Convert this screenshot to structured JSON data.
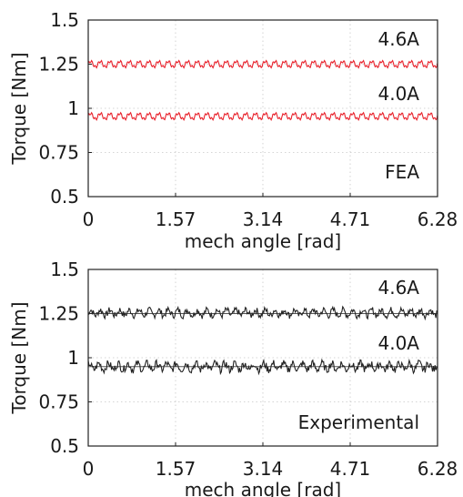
{
  "chart_data": [
    {
      "type": "line",
      "xlabel": "mech angle [rad]",
      "ylabel": "Torque [Nm]",
      "xlim": [
        0,
        6.28
      ],
      "ylim": [
        0.5,
        1.5
      ],
      "xticks": [
        "0",
        "1.57",
        "3.14",
        "4.71",
        "6.28"
      ],
      "yticks": [
        "0.5",
        "0.75",
        "1",
        "1.25",
        "1.5"
      ],
      "grid": true,
      "annotations": [
        "4.6A",
        "4.0A",
        "FEA"
      ],
      "line_color": "#e8202a",
      "series": [
        {
          "name": "4.6A",
          "mean": 1.25,
          "ripple_pp": 0.05,
          "cycles": 36
        },
        {
          "name": "4.0A",
          "mean": 0.955,
          "ripple_pp": 0.05,
          "cycles": 36
        }
      ]
    },
    {
      "type": "line",
      "xlabel": "mech angle [rad]",
      "ylabel": "Torque [Nm]",
      "xlim": [
        0,
        6.28
      ],
      "ylim": [
        0.5,
        1.5
      ],
      "xticks": [
        "0",
        "1.57",
        "3.14",
        "4.71",
        "6.28"
      ],
      "yticks": [
        "0.5",
        "0.75",
        "1",
        "1.25",
        "1.5"
      ],
      "grid": true,
      "annotations": [
        "4.6A",
        "4.0A",
        "Experimental"
      ],
      "line_color": "#222222",
      "reference_lines": [
        1.25,
        0.95
      ],
      "series": [
        {
          "name": "4.6A",
          "mean": 1.255,
          "ripple_pp": 0.07,
          "cycles": 36
        },
        {
          "name": "4.0A",
          "mean": 0.95,
          "ripple_pp": 0.08,
          "cycles": 36
        }
      ]
    }
  ]
}
